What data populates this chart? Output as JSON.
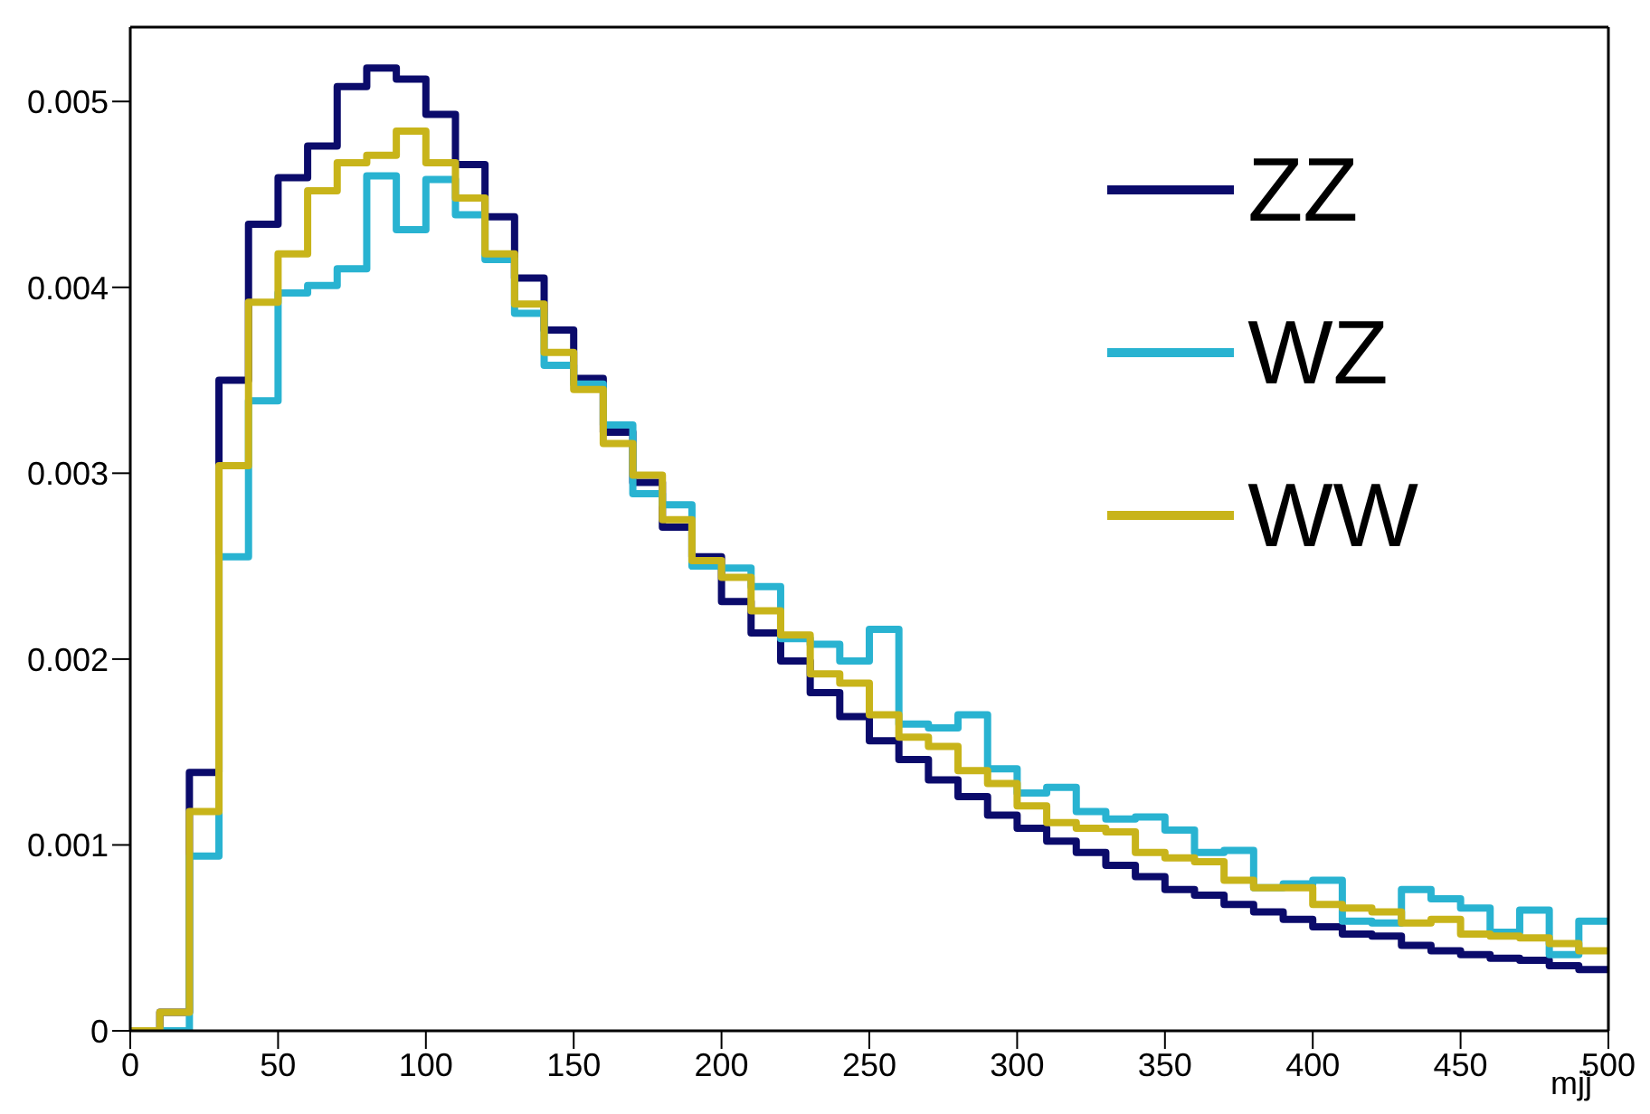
{
  "chart_data": {
    "type": "histogram",
    "xlabel": "mjj",
    "bins": [
      0,
      10,
      20,
      30,
      40,
      50,
      60,
      70,
      80,
      90,
      100,
      110,
      120,
      130,
      140,
      150,
      160,
      170,
      180,
      190,
      200,
      210,
      220,
      230,
      240,
      250,
      260,
      270,
      280,
      290,
      300,
      310,
      320,
      330,
      340,
      350,
      360,
      370,
      380,
      390,
      400,
      410,
      420,
      430,
      440,
      450,
      460,
      470,
      480,
      490,
      500
    ],
    "series": [
      {
        "name": "ZZ",
        "color": "#0b0b6b",
        "values": [
          0,
          0.0001,
          0.00139,
          0.0035,
          0.00434,
          0.00459,
          0.00476,
          0.00508,
          0.00518,
          0.00512,
          0.00493,
          0.00466,
          0.00438,
          0.00405,
          0.00377,
          0.00351,
          0.00322,
          0.00295,
          0.00271,
          0.00255,
          0.00231,
          0.00214,
          0.00199,
          0.00182,
          0.00169,
          0.00156,
          0.00146,
          0.00135,
          0.00126,
          0.00116,
          0.00109,
          0.00102,
          0.00096,
          0.00089,
          0.00083,
          0.00076,
          0.00073,
          0.00068,
          0.00064,
          0.0006,
          0.00056,
          0.00052,
          0.00051,
          0.00046,
          0.00043,
          0.00041,
          0.00039,
          0.00038,
          0.00035,
          0.00033
        ]
      },
      {
        "name": "WZ",
        "color": "#29b3d1",
        "values": [
          0,
          0,
          0.00094,
          0.00255,
          0.00339,
          0.00397,
          0.00401,
          0.0041,
          0.0046,
          0.00431,
          0.00458,
          0.00439,
          0.00415,
          0.00386,
          0.00358,
          0.00348,
          0.00326,
          0.00289,
          0.00283,
          0.0025,
          0.00249,
          0.00239,
          0.00211,
          0.00208,
          0.00199,
          0.00216,
          0.00165,
          0.00163,
          0.0017,
          0.00141,
          0.00128,
          0.00131,
          0.00118,
          0.00114,
          0.00115,
          0.00108,
          0.00096,
          0.00097,
          0.00077,
          0.00079,
          0.00081,
          0.00059,
          0.00058,
          0.00076,
          0.00071,
          0.00066,
          0.00053,
          0.00065,
          0.00041,
          0.00059
        ]
      },
      {
        "name": "WW",
        "color": "#c8b41a",
        "values": [
          0,
          0.0001,
          0.00118,
          0.00304,
          0.00392,
          0.00418,
          0.00452,
          0.00467,
          0.00471,
          0.00484,
          0.00467,
          0.00448,
          0.00418,
          0.00391,
          0.00365,
          0.00345,
          0.00316,
          0.00299,
          0.00275,
          0.00253,
          0.00244,
          0.00226,
          0.00213,
          0.00192,
          0.00187,
          0.0017,
          0.00158,
          0.00153,
          0.0014,
          0.00133,
          0.00121,
          0.00112,
          0.00109,
          0.00107,
          0.00096,
          0.00093,
          0.00091,
          0.00081,
          0.00077,
          0.00077,
          0.00068,
          0.00066,
          0.00064,
          0.00058,
          0.0006,
          0.00052,
          0.00051,
          0.0005,
          0.00047,
          0.00043
        ]
      }
    ],
    "xlim": [
      0,
      500
    ],
    "xticks": [
      0,
      50,
      100,
      150,
      200,
      250,
      300,
      350,
      400,
      450,
      500
    ],
    "ylim": [
      0,
      0.0054
    ],
    "yticks": [
      0,
      0.001,
      0.002,
      0.003,
      0.004,
      0.005
    ],
    "grid": false,
    "legend": "top right"
  }
}
